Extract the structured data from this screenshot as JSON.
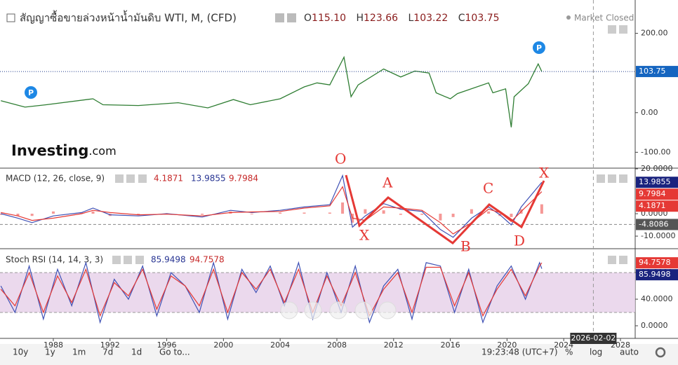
{
  "header": {
    "title": "สัญญาซื้อขายล่วงหน้าน้ำมันดิบ WTI, M, (CFD)",
    "ohlc": [
      {
        "label": "O",
        "value": "115.10"
      },
      {
        "label": "H",
        "value": "123.66"
      },
      {
        "label": "L",
        "value": "103.22"
      },
      {
        "label": "C",
        "value": "103.75"
      }
    ],
    "status": "Market Closed"
  },
  "logo": {
    "name": "Investing",
    "suffix": ".com"
  },
  "markers": [
    "P",
    "P"
  ],
  "xlim": [
    1984.24,
    2029.04
  ],
  "xticks": [
    1988,
    1992,
    1996,
    2000,
    2004,
    2008,
    2012,
    2016,
    2020,
    2024,
    2028
  ],
  "cursor": {
    "value": 2026.09,
    "label": "2026-02-02"
  },
  "price": {
    "color": "#2e7d32",
    "x": [
      1984.3,
      1986,
      1987.5,
      1990.8,
      1991.5,
      1994,
      1996.8,
      1998.9,
      2000.7,
      2001.9,
      2004,
      2005.7,
      2006.6,
      2007.5,
      2008.5,
      2009.0,
      2009.5,
      2011.3,
      2012.5,
      2013.5,
      2014.5,
      2015,
      2016,
      2016.5,
      2018.7,
      2019,
      2019.9,
      2020.3,
      2020.5,
      2021.5,
      2022.2,
      2022.45
    ],
    "values": [
      30,
      14,
      20,
      35,
      20,
      18,
      25,
      12,
      33,
      20,
      35,
      65,
      75,
      70,
      140,
      40,
      70,
      110,
      90,
      105,
      100,
      50,
      35,
      48,
      75,
      50,
      60,
      -37,
      40,
      73,
      123,
      103.75
    ],
    "last": {
      "value": 103.75,
      "label": "103.75"
    },
    "ylim": [
      -140,
      270
    ],
    "yticks": [
      {
        "value": 200,
        "label": "200.00"
      },
      {
        "value": 0,
        "label": "0.00"
      },
      {
        "value": -100,
        "label": "-100.00"
      }
    ]
  },
  "macd": {
    "title": "MACD (12, 26, close, 9)",
    "x": [
      1984.3,
      1985.5,
      1986.5,
      1988,
      1990,
      1990.8,
      1992,
      1994,
      1996,
      1998.5,
      2000.5,
      2002,
      2004,
      2005.7,
      2007.5,
      2008.4,
      2009.1,
      2010,
      2011.3,
      2012.5,
      2014,
      2015.3,
      2016.2,
      2017.5,
      2018.7,
      2019.5,
      2020.3,
      2021,
      2022.45
    ],
    "histogram": {
      "color": "#ef5350",
      "values": [
        -0.5,
        -1,
        -1,
        1,
        0.5,
        1,
        -1,
        -0.5,
        0.2,
        -0.5,
        1,
        -0.3,
        0.5,
        0.5,
        0.5,
        5,
        -4,
        2,
        1.5,
        -0.5,
        -0.5,
        -3,
        -1.5,
        2,
        1,
        -1,
        -1.5,
        2,
        4.1871
      ],
      "label": "4.1871"
    },
    "macd": {
      "color": "#3f51b5",
      "values": [
        0,
        -2,
        -4,
        -1,
        0.5,
        2.5,
        -0.5,
        -1,
        0,
        -1.5,
        1.5,
        0.5,
        1.5,
        3,
        4,
        17,
        -6,
        -1,
        4.5,
        2,
        1,
        -7,
        -10.5,
        -2,
        3,
        -0.5,
        -5,
        3,
        13.9855
      ],
      "label": "13.9855"
    },
    "signal": {
      "color": "#e53935",
      "values": [
        0.5,
        -1,
        -3,
        -2,
        0,
        1.5,
        0.5,
        -0.5,
        -0.2,
        -1,
        0.5,
        0.8,
        1,
        2.5,
        3.5,
        12,
        -2,
        -3,
        3,
        2.5,
        1.5,
        -4,
        -9,
        -4,
        2,
        0.5,
        -3.5,
        1,
        9.7984
      ],
      "label": "9.7984"
    },
    "level": {
      "value": -4.8086,
      "label": "-4.8086"
    },
    "ylim": [
      -15.6,
      20.3
    ],
    "yticks": [
      {
        "value": 20,
        "label": "20.0000"
      },
      {
        "value": 0,
        "label": "0.0000"
      },
      {
        "value": -10,
        "label": "-10.0000"
      }
    ]
  },
  "stoch": {
    "title": "Stoch RSI (14, 14, 3, 3)",
    "x": [
      1984.3,
      1985.3,
      1986.3,
      1987.3,
      1988.3,
      1989.3,
      1990.3,
      1991.3,
      1992.3,
      1993.3,
      1994.3,
      1995.3,
      1996.3,
      1997.3,
      1998.3,
      1999.3,
      2000.3,
      2001.3,
      2002.3,
      2003.3,
      2004.3,
      2005.3,
      2006.3,
      2007.3,
      2008.3,
      2009.3,
      2010.3,
      2011.3,
      2012.3,
      2013.3,
      2014.3,
      2015.3,
      2016.3,
      2017.3,
      2018.3,
      2019.3,
      2020.3,
      2021.3,
      2022.3,
      2022.45
    ],
    "k": {
      "color": "#3f51b5",
      "values": [
        60,
        20,
        90,
        10,
        85,
        30,
        95,
        5,
        70,
        40,
        90,
        15,
        80,
        60,
        20,
        95,
        10,
        85,
        50,
        90,
        30,
        95,
        10,
        80,
        20,
        90,
        5,
        60,
        85,
        10,
        95,
        90,
        20,
        85,
        5,
        60,
        90,
        40,
        95,
        85.9498
      ],
      "label": "85.9498"
    },
    "d": {
      "color": "#e53935",
      "values": [
        55,
        30,
        80,
        20,
        75,
        35,
        85,
        15,
        65,
        45,
        85,
        25,
        75,
        60,
        30,
        85,
        20,
        80,
        55,
        85,
        35,
        85,
        20,
        75,
        30,
        80,
        15,
        55,
        80,
        20,
        88,
        88,
        30,
        80,
        15,
        55,
        85,
        45,
        90,
        94.7578
      ],
      "label": "94.7578"
    },
    "band": [
      20,
      80
    ],
    "band_color": "#e6cfe9",
    "ylim": [
      -19,
      116
    ],
    "yticks": [
      {
        "value": 80,
        "label": "80.0000"
      },
      {
        "value": 40,
        "label": "40.0000"
      },
      {
        "value": 0,
        "label": "0.0000"
      }
    ]
  },
  "annotations": [
    "O",
    "A",
    "C",
    "X",
    "X",
    "B",
    "D"
  ],
  "toolbar": {
    "ranges": [
      "10y",
      "1y",
      "1m",
      "7d",
      "1d"
    ],
    "goto": "Go to...",
    "time": "19:23:48 (UTC+7)",
    "options": [
      "%",
      "log",
      "auto"
    ]
  }
}
